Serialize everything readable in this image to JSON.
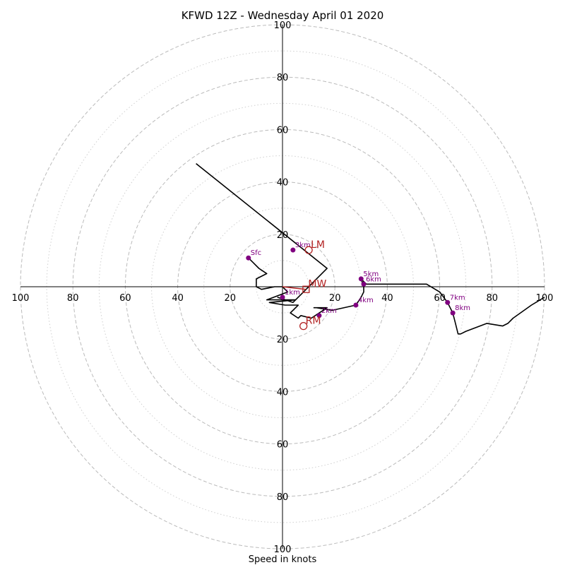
{
  "chart_data": {
    "type": "hodograph",
    "title": "KFWD 12Z - Wednesday April 01 2020",
    "xlabel": "Speed in knots",
    "rings_major": [
      20,
      40,
      60,
      80,
      100
    ],
    "rings_minor": [
      10,
      30,
      50,
      70,
      90
    ],
    "tick_labels": {
      "x_left": [
        "100",
        "80",
        "60",
        "40",
        "20"
      ],
      "x_right": [
        "20",
        "40",
        "60",
        "80",
        "100"
      ],
      "y_top": [
        "20",
        "40",
        "60",
        "80",
        "100"
      ],
      "y_bottom": [
        "20",
        "40",
        "60",
        "80",
        "100"
      ]
    },
    "range": [
      -100,
      100
    ],
    "colors": {
      "trace": "#000000",
      "height_points": "#800080",
      "storm_motion": "#b22222",
      "grid": "#bbbbbb"
    },
    "trace": {
      "u": [
        -13,
        -11,
        -9,
        -6,
        -10,
        -10,
        -8,
        -3,
        0,
        2,
        -6,
        5,
        -5,
        1,
        6,
        3,
        6,
        7,
        11,
        17,
        12,
        13,
        19,
        28,
        30,
        31,
        31,
        30,
        32,
        35,
        40,
        45,
        50,
        55,
        60,
        63,
        64,
        65,
        66,
        67,
        68,
        70,
        78,
        84,
        86,
        88,
        95,
        100
      ],
      "v": [
        11,
        9,
        7,
        5,
        3,
        0,
        -1,
        0,
        0,
        -2,
        -5,
        -5,
        -6,
        -7,
        -7,
        -10,
        -12,
        -11,
        -12,
        -8,
        -8,
        -8,
        -9,
        -7,
        -4,
        -2,
        0,
        3,
        1,
        1,
        1,
        1,
        1,
        1,
        -2,
        -6,
        -8,
        -10,
        -14,
        -18,
        -18,
        -17,
        -14,
        -15,
        -14,
        -12,
        -7,
        -4
      ]
    },
    "trace2": {
      "u": [
        -2,
        4,
        17,
        -33
      ],
      "v": [
        -4,
        -6,
        7,
        47
      ]
    },
    "height_points": [
      {
        "label": "Sfc",
        "u": -13,
        "v": 11
      },
      {
        "label": "1km",
        "u": 0,
        "v": -4
      },
      {
        "label": "2km",
        "u": 14,
        "v": -11
      },
      {
        "label": "3km",
        "u": 4,
        "v": 14
      },
      {
        "label": "4km",
        "u": 28,
        "v": -7
      },
      {
        "label": "5km",
        "u": 30,
        "v": 3
      },
      {
        "label": "6km",
        "u": 31,
        "v": 1
      },
      {
        "label": "7km",
        "u": 63,
        "v": -6
      },
      {
        "label": "8km",
        "u": 65,
        "v": -10
      }
    ],
    "storm_motion": [
      {
        "label": "LM",
        "u": 10,
        "v": 14,
        "marker": "circle"
      },
      {
        "label": "MW",
        "u": 9,
        "v": -1,
        "marker": "square"
      },
      {
        "label": "RM",
        "u": 8,
        "v": -15,
        "marker": "circle"
      }
    ]
  }
}
